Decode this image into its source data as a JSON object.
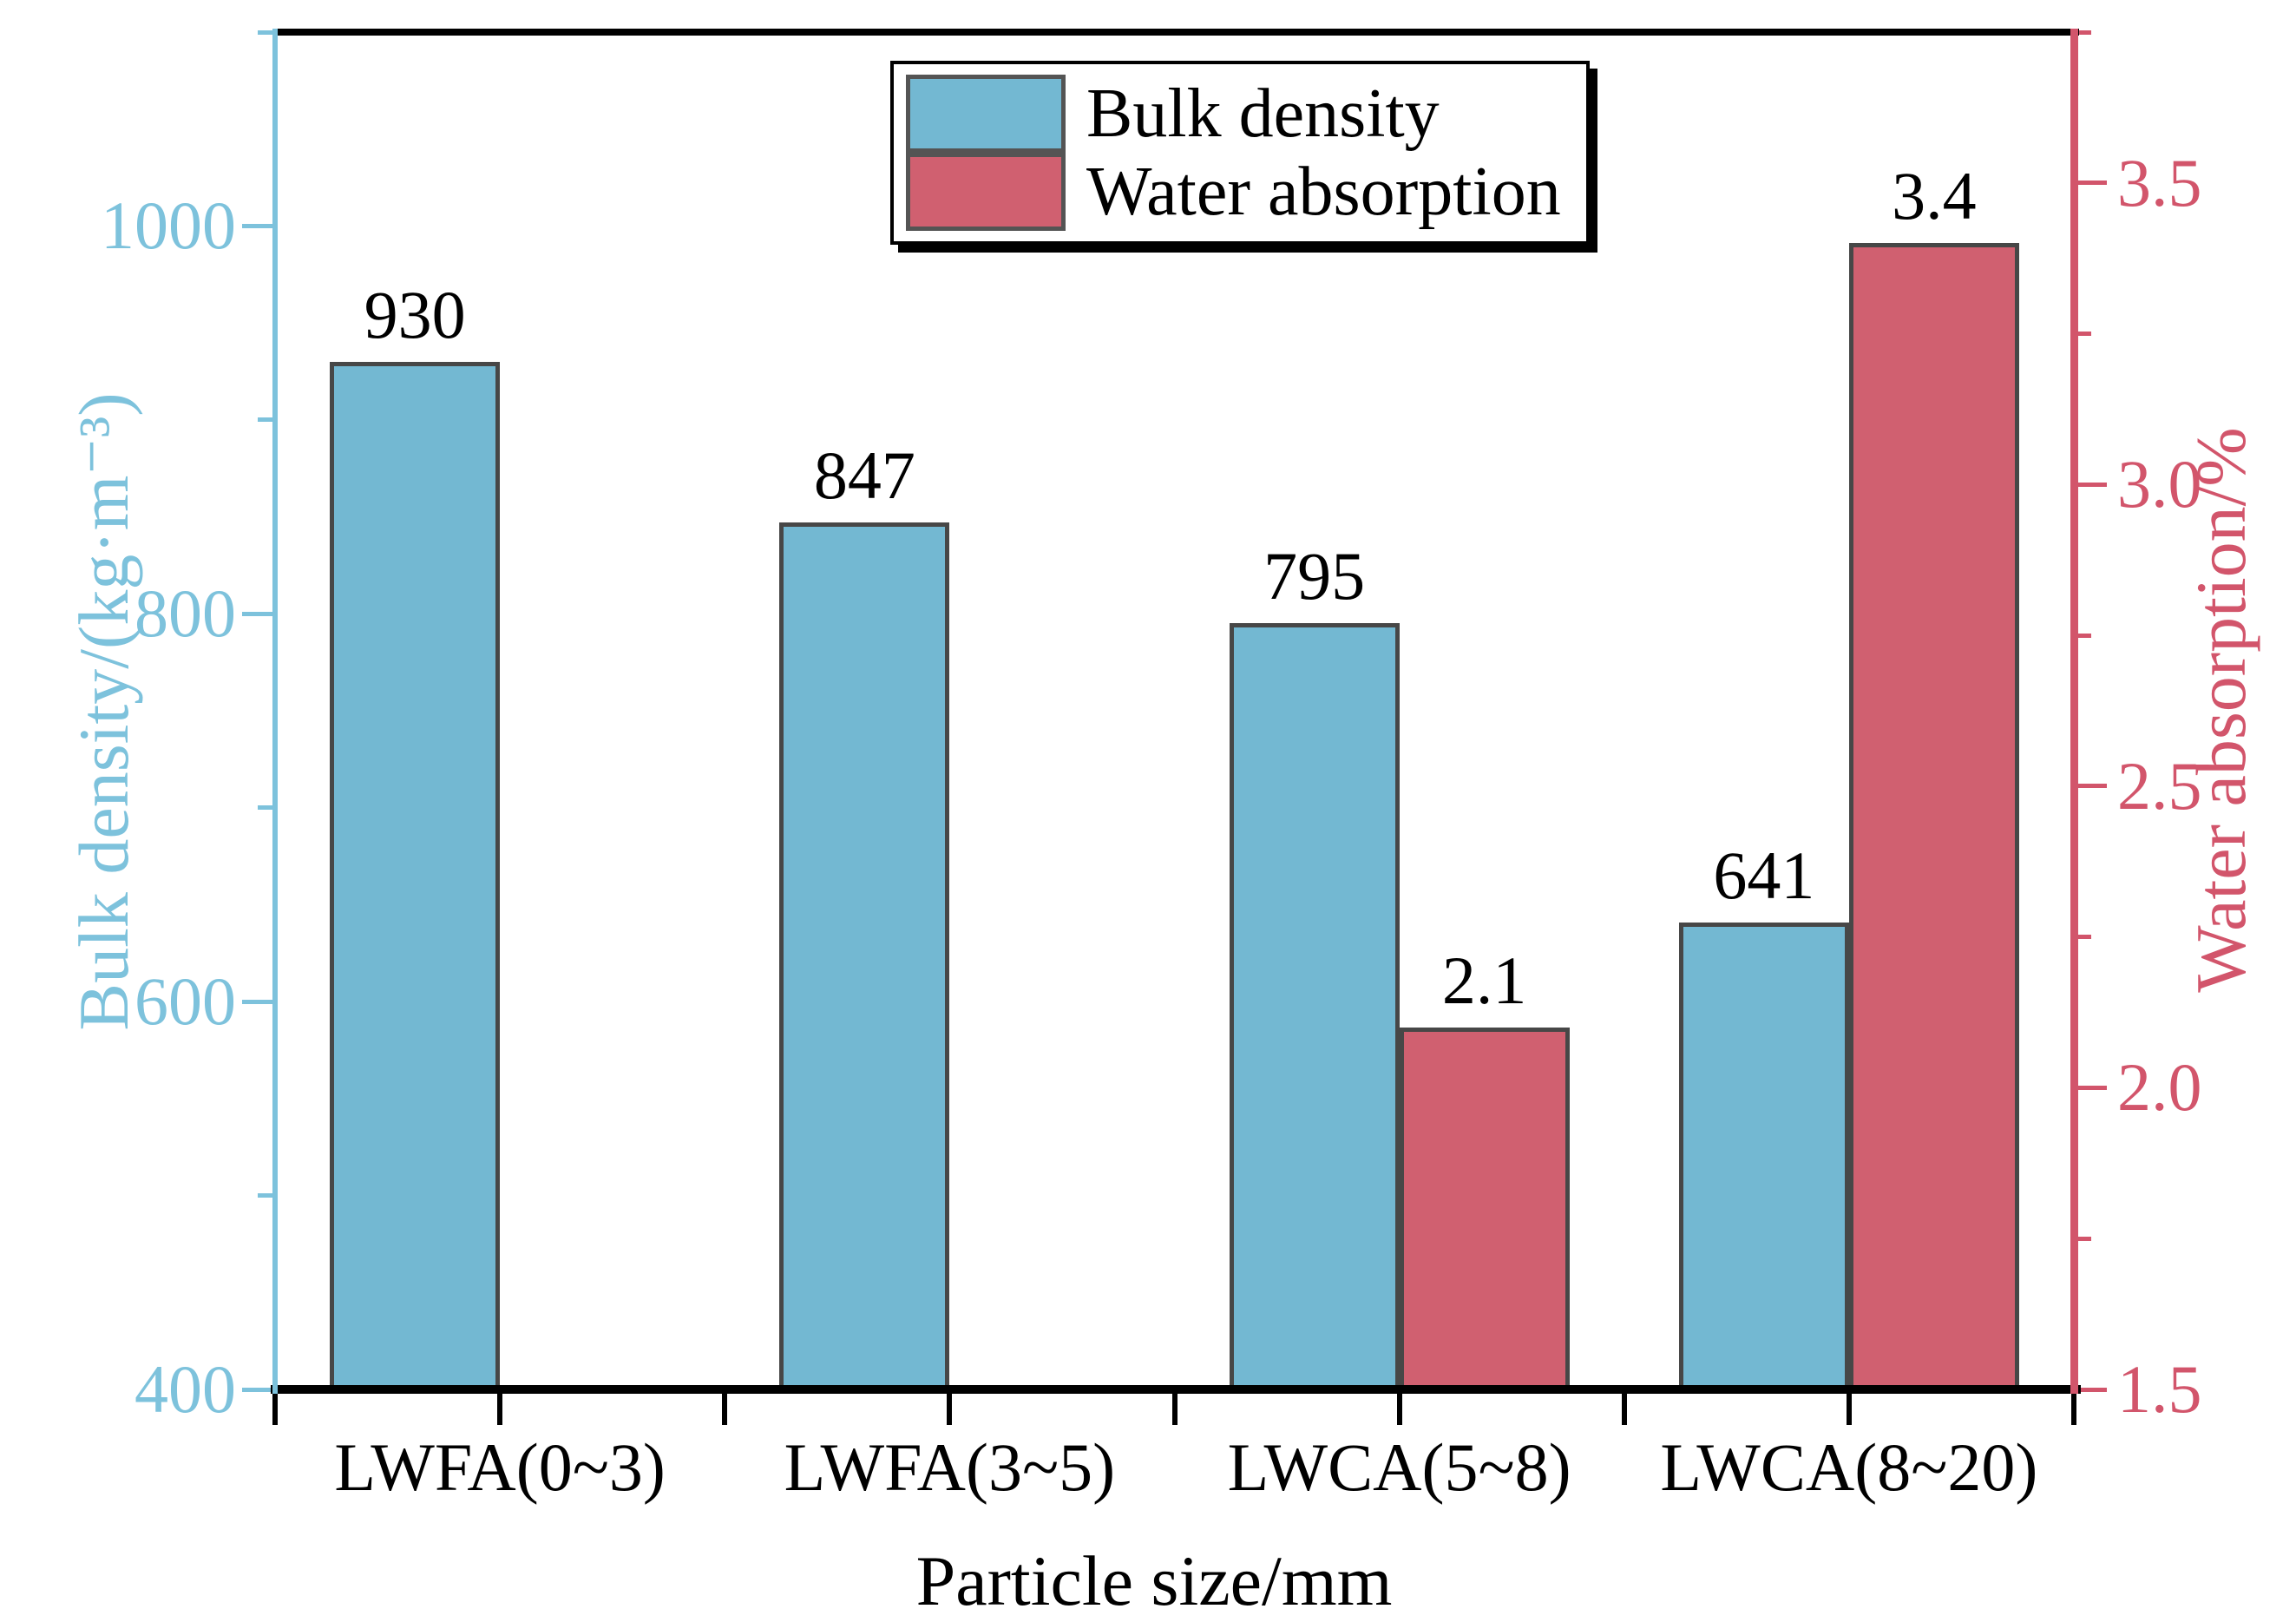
{
  "chart_data": {
    "type": "bar",
    "dual_axis": true,
    "grid": false,
    "categories": [
      "LWFA(0~3)",
      "LWFA(3~5)",
      "LWCA(5~8)",
      "LWCA(8~20)"
    ],
    "series": [
      {
        "name": "Bulk density",
        "axis": "left",
        "color": "#73b8d2",
        "border_color": "#474747",
        "values": [
          930,
          847,
          795,
          641
        ],
        "value_labels": [
          "930",
          "847",
          "795",
          "641"
        ]
      },
      {
        "name": "Water absorption",
        "axis": "right",
        "color": "#d06070",
        "border_color": "#474747",
        "values": [
          null,
          null,
          2.1,
          3.4
        ],
        "value_labels": [
          null,
          null,
          "2.1",
          "3.4"
        ]
      }
    ],
    "x_axis": {
      "label": "Particle size/mm",
      "color": "#000000"
    },
    "left_axis": {
      "label": "Bulk density/(kg·m⁻³)",
      "color": "#7dc2dc",
      "min": 400,
      "max": 1100,
      "major_ticks": {
        "values": [
          400,
          600,
          800,
          1000
        ],
        "labels": [
          "400",
          "600",
          "800",
          "1000"
        ]
      },
      "minor_ticks": [
        500,
        700,
        900,
        1100
      ]
    },
    "right_axis": {
      "label": "Water absorption/%",
      "color": "#d2556b",
      "min": 1.5,
      "max": 3.75,
      "major_ticks": {
        "values": [
          1.5,
          2.0,
          2.5,
          3.0,
          3.5
        ],
        "labels": [
          "1.5",
          "2.0",
          "2.5",
          "3.0",
          "3.5"
        ]
      },
      "minor_ticks": [
        1.75,
        2.25,
        2.75,
        3.25,
        3.75
      ]
    },
    "legend": {
      "position": "top-center",
      "entries": [
        "Bulk density",
        "Water absorption"
      ]
    },
    "frame_color": "#000000"
  }
}
